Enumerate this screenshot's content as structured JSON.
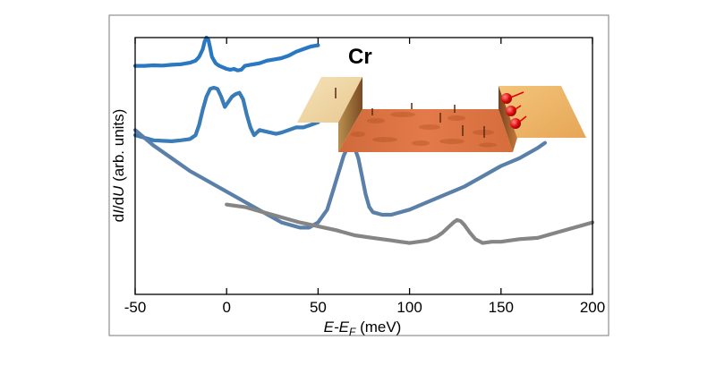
{
  "chart_data": {
    "type": "line",
    "xlabel_main": "E-E",
    "xlabel_sub": "F",
    "xlabel_unit": " (meV)",
    "ylabel_pre": "d",
    "ylabel_I": "I",
    "ylabel_slash": "/d",
    "ylabel_U": "U",
    "ylabel_post": " (arb. units)",
    "xlim": [
      -50,
      200
    ],
    "xticks": [
      -50,
      0,
      50,
      100,
      150,
      200
    ],
    "xtick_labels": [
      "-50",
      "0",
      "50",
      "100",
      "150",
      "200"
    ],
    "inset": {
      "title": "Cr"
    },
    "series": [
      {
        "color": "#2a78c2",
        "x": [
          -50,
          -45,
          -40,
          -35,
          -30,
          -25,
          -20,
          -17,
          -15,
          -13,
          -12,
          -11,
          -10,
          -9,
          -8,
          -6,
          -4,
          -2,
          0,
          2,
          4,
          6,
          8,
          10,
          14,
          18,
          22,
          26,
          30,
          34,
          38,
          42,
          46,
          50
        ],
        "y": [
          0.89,
          0.89,
          0.892,
          0.891,
          0.894,
          0.896,
          0.902,
          0.91,
          0.925,
          0.955,
          0.985,
          1.0,
          0.992,
          0.96,
          0.925,
          0.9,
          0.89,
          0.884,
          0.878,
          0.875,
          0.878,
          0.872,
          0.875,
          0.89,
          0.895,
          0.9,
          0.91,
          0.915,
          0.92,
          0.93,
          0.945,
          0.955,
          0.965,
          0.97
        ]
      },
      {
        "color": "#3a7cb8",
        "x": [
          -50,
          -45,
          -40,
          -35,
          -30,
          -25,
          -20,
          -17,
          -15,
          -13,
          -11,
          -9,
          -7,
          -5,
          -3,
          -1,
          1,
          3,
          5,
          7,
          9,
          11,
          13,
          15,
          18,
          21,
          24,
          27,
          30,
          34,
          38,
          42,
          46,
          50
        ],
        "y": [
          0.62,
          0.61,
          0.6,
          0.598,
          0.596,
          0.6,
          0.605,
          0.62,
          0.66,
          0.72,
          0.77,
          0.8,
          0.805,
          0.8,
          0.77,
          0.73,
          0.75,
          0.77,
          0.78,
          0.785,
          0.76,
          0.7,
          0.65,
          0.62,
          0.64,
          0.635,
          0.63,
          0.625,
          0.63,
          0.64,
          0.65,
          0.65,
          0.66,
          0.67
        ]
      },
      {
        "color": "#5a7fa8",
        "x": [
          -50,
          -40,
          -30,
          -20,
          -10,
          0,
          10,
          20,
          30,
          40,
          45,
          50,
          55,
          58,
          61,
          64,
          66,
          68,
          70,
          72,
          74,
          76,
          78,
          80,
          85,
          90,
          100,
          110,
          120,
          130,
          140,
          150,
          160,
          170,
          174
        ],
        "y": [
          0.64,
          0.58,
          0.53,
          0.48,
          0.44,
          0.4,
          0.36,
          0.32,
          0.28,
          0.26,
          0.26,
          0.28,
          0.33,
          0.4,
          0.47,
          0.54,
          0.57,
          0.58,
          0.57,
          0.53,
          0.46,
          0.39,
          0.34,
          0.32,
          0.31,
          0.31,
          0.33,
          0.36,
          0.39,
          0.42,
          0.46,
          0.5,
          0.53,
          0.57,
          0.59
        ]
      },
      {
        "color": "#858585",
        "x": [
          0,
          10,
          20,
          30,
          40,
          50,
          60,
          70,
          80,
          90,
          95,
          100,
          105,
          110,
          115,
          118,
          121,
          124,
          126,
          128,
          130,
          133,
          136,
          140,
          145,
          150,
          160,
          170,
          180,
          190,
          200
        ],
        "y": [
          0.35,
          0.34,
          0.32,
          0.3,
          0.28,
          0.265,
          0.25,
          0.23,
          0.22,
          0.21,
          0.205,
          0.2,
          0.205,
          0.21,
          0.225,
          0.24,
          0.26,
          0.28,
          0.29,
          0.285,
          0.27,
          0.24,
          0.215,
          0.2,
          0.205,
          0.205,
          0.215,
          0.22,
          0.24,
          0.26,
          0.28
        ]
      }
    ]
  }
}
